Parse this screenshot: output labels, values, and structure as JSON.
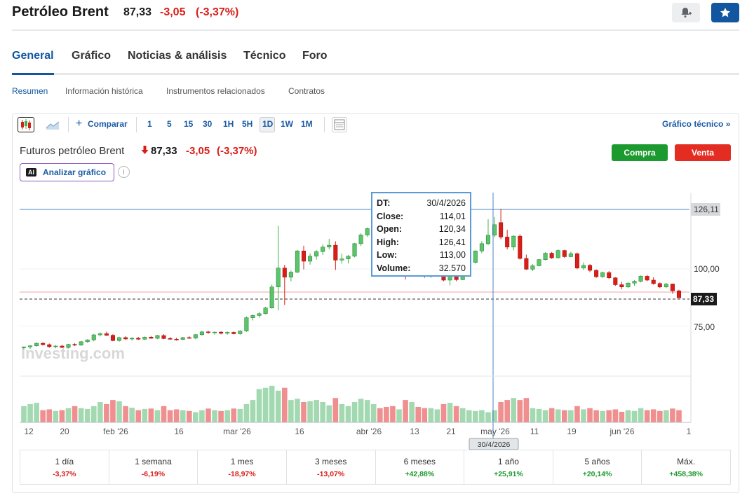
{
  "header": {
    "instrument_name": "Petróleo Brent",
    "price": "87,33",
    "change": "-3,05",
    "change_pct": "(-3,37%)"
  },
  "tabs": [
    {
      "label": "General",
      "active": true
    },
    {
      "label": "Gráfico"
    },
    {
      "label": "Noticias & análisis"
    },
    {
      "label": "Técnico"
    },
    {
      "label": "Foro"
    }
  ],
  "subtabs": [
    {
      "label": "Resumen",
      "active": true
    },
    {
      "label": "Información histórica"
    },
    {
      "label": "Instrumentos relacionados"
    },
    {
      "label": "Contratos"
    }
  ],
  "toolbar": {
    "compare_label": "Comparar",
    "intervals": [
      "1",
      "5",
      "15",
      "30",
      "1H",
      "5H",
      "1D",
      "1W",
      "1M"
    ],
    "selected_interval": "1D",
    "technical_chart_label": "Gráfico técnico »"
  },
  "chart_header": {
    "name": "Futuros petróleo Brent",
    "price": "87,33",
    "change": "-3,05",
    "change_pct": "(-3,37%)",
    "buy_label": "Compra",
    "sell_label": "Venta",
    "analyze_label": "Analizar gráfico",
    "ai_badge": "AI",
    "info_glyph": "i"
  },
  "tooltip": {
    "rows": [
      {
        "k": "DT:",
        "v": "30/4/2026"
      },
      {
        "k": "Close:",
        "v": "114,01"
      },
      {
        "k": "Open:",
        "v": "120,34"
      },
      {
        "k": "High:",
        "v": "126,41"
      },
      {
        "k": "Low:",
        "v": "113,00"
      },
      {
        "k": "Volume:",
        "v": "32.570"
      }
    ]
  },
  "chart_data": {
    "type": "candlestick",
    "y_ticks": [
      "126,11",
      "100,00",
      "75,00"
    ],
    "current_price_label": "87,33",
    "x_ticks": [
      "12",
      "20",
      "feb '26",
      "16",
      "mar '26",
      "16",
      "abr '26",
      "13",
      "21",
      "may '26",
      "11",
      "19",
      "jun '26",
      "1"
    ],
    "crosshair_date": "30/4/2026",
    "watermark": "Investing.com",
    "colors": {
      "up": "#3cb44b",
      "down": "#d91e18",
      "vol_up": "#a3d9b1",
      "vol_down": "#f08f8f",
      "crosshair": "#4a86c8"
    },
    "candles": [
      [
        65.5,
        66,
        64.8,
        65.8,
        0.4
      ],
      [
        65.8,
        66.5,
        65,
        66.3,
        0.45
      ],
      [
        66.3,
        67.8,
        65.9,
        67.4,
        0.48
      ],
      [
        67.4,
        67.9,
        66.4,
        66.8,
        0.3
      ],
      [
        66.8,
        67.3,
        65.5,
        65.9,
        0.32
      ],
      [
        65.9,
        66.6,
        65.2,
        66.2,
        0.28
      ],
      [
        66.2,
        66.7,
        65.3,
        65.6,
        0.3
      ],
      [
        65.6,
        67.2,
        65.2,
        66.9,
        0.35
      ],
      [
        66.9,
        67.4,
        66.2,
        66.6,
        0.4
      ],
      [
        66.6,
        68.5,
        66.3,
        68.1,
        0.35
      ],
      [
        68.1,
        69.2,
        67.6,
        68.9,
        0.33
      ],
      [
        68.9,
        71.5,
        68.3,
        71.1,
        0.4
      ],
      [
        71.1,
        72.2,
        70.4,
        71.6,
        0.5
      ],
      [
        71.6,
        72.5,
        70.6,
        70.9,
        0.45
      ],
      [
        70.9,
        71.4,
        68.3,
        68.6,
        0.55
      ],
      [
        68.6,
        70.3,
        68.1,
        69.9,
        0.52
      ],
      [
        69.9,
        70.5,
        68.9,
        69.3,
        0.4
      ],
      [
        69.3,
        70.1,
        68.6,
        69.6,
        0.36
      ],
      [
        69.6,
        70.2,
        68.9,
        69.2,
        0.3
      ],
      [
        69.2,
        70.4,
        68.8,
        70.1,
        0.33
      ],
      [
        70.1,
        70.6,
        69.4,
        69.6,
        0.34
      ],
      [
        69.6,
        71.1,
        69.2,
        70.8,
        0.3
      ],
      [
        70.8,
        71.4,
        69.2,
        69.5,
        0.4
      ],
      [
        69.5,
        70.2,
        68.9,
        69.2,
        0.3
      ],
      [
        69.2,
        69.8,
        68.6,
        69.1,
        0.32
      ],
      [
        69.1,
        70.2,
        68.8,
        69.9,
        0.3
      ],
      [
        69.9,
        70.5,
        69.4,
        69.7,
        0.28
      ],
      [
        69.7,
        71.5,
        69.2,
        71.2,
        0.25
      ],
      [
        71.2,
        72.8,
        70.8,
        72.4,
        0.3
      ],
      [
        72.4,
        72.9,
        71.6,
        72.1,
        0.34
      ],
      [
        72.1,
        72.6,
        71.2,
        72.3,
        0.3
      ],
      [
        72.3,
        72.7,
        71.3,
        71.8,
        0.28
      ],
      [
        71.8,
        72.6,
        71.2,
        72.2,
        0.3
      ],
      [
        72.2,
        72.6,
        71.3,
        71.6,
        0.34
      ],
      [
        71.6,
        73.1,
        71.2,
        72.8,
        0.33
      ],
      [
        72.8,
        79.2,
        72.4,
        78.6,
        0.45
      ],
      [
        78.6,
        80.1,
        77.4,
        79.6,
        0.55
      ],
      [
        79.6,
        81.1,
        78.6,
        80.4,
        0.82
      ],
      [
        80.4,
        83.4,
        80.1,
        82.9,
        0.85
      ],
      [
        82.9,
        93.2,
        82.6,
        92.1,
        0.9
      ],
      [
        92.1,
        118.9,
        81.8,
        100.4,
        0.78
      ],
      [
        100.4,
        101.8,
        84.2,
        96.4,
        0.85
      ],
      [
        96.4,
        99.3,
        94.6,
        98.6,
        0.55
      ],
      [
        98.6,
        108.4,
        98.1,
        107.9,
        0.58
      ],
      [
        107.9,
        110.2,
        99.8,
        103.4,
        0.5
      ],
      [
        103.4,
        106.8,
        101.9,
        105.6,
        0.52
      ],
      [
        105.6,
        108.3,
        104.1,
        107.6,
        0.55
      ],
      [
        107.6,
        110.8,
        106.1,
        109.6,
        0.5
      ],
      [
        109.6,
        113.2,
        108.6,
        110.4,
        0.42
      ],
      [
        110.4,
        112.1,
        99.6,
        103.9,
        0.6
      ],
      [
        103.9,
        106.7,
        102.3,
        104.4,
        0.45
      ],
      [
        104.4,
        106.1,
        102.4,
        105.6,
        0.4
      ],
      [
        105.6,
        111.4,
        105.1,
        111.1,
        0.5
      ],
      [
        111.1,
        115.6,
        110.1,
        114.9,
        0.58
      ],
      [
        114.9,
        118.2,
        114.1,
        117.7,
        0.55
      ],
      [
        117.7,
        119.3,
        115.8,
        119.1,
        0.45
      ],
      [
        117.5,
        118.3,
        114.9,
        115.3,
        0.35
      ],
      [
        115.3,
        117.6,
        105.1,
        106.7,
        0.38
      ],
      [
        106.7,
        108.4,
        104.3,
        106.2,
        0.4
      ],
      [
        106.2,
        108.6,
        104.9,
        107.9,
        0.32
      ],
      [
        107.9,
        109.8,
        95.4,
        97.8,
        0.55
      ],
      [
        97.8,
        99.9,
        96.9,
        98.9,
        0.5
      ],
      [
        98.9,
        99.6,
        97.3,
        98.4,
        0.38
      ],
      [
        98.4,
        100.1,
        96.1,
        96.8,
        0.35
      ],
      [
        96.8,
        99.2,
        96.1,
        98.6,
        0.35
      ],
      [
        98.6,
        100.6,
        97.9,
        99.8,
        0.32
      ],
      [
        99.8,
        100.4,
        94.6,
        95.1,
        0.45
      ],
      [
        95.1,
        100.2,
        92.8,
        99.6,
        0.48
      ],
      [
        99.6,
        101.2,
        94.6,
        95.3,
        0.4
      ],
      [
        95.3,
        98.2,
        95.1,
        97.6,
        0.35
      ],
      [
        97.6,
        103.4,
        97.2,
        102.9,
        0.3
      ],
      [
        102.9,
        108.2,
        102.4,
        107.9,
        0.28
      ],
      [
        107.9,
        112.2,
        106.9,
        111.1,
        0.3
      ],
      [
        111.1,
        121.8,
        110.4,
        114.8,
        0.25
      ],
      [
        114.8,
        122.8,
        113.9,
        119.4,
        0.3
      ],
      [
        120.34,
        126.41,
        113,
        114.01,
        0.5
      ],
      [
        114.01,
        117.2,
        108.6,
        109.6,
        0.55
      ],
      [
        109.6,
        114.8,
        108.2,
        114.4,
        0.6
      ],
      [
        114.4,
        115.2,
        104.1,
        104.6,
        0.55
      ],
      [
        104.6,
        106.3,
        99.6,
        99.9,
        0.6
      ],
      [
        99.9,
        102.1,
        99.1,
        101.4,
        0.35
      ],
      [
        101.4,
        104.4,
        101.1,
        104.1,
        0.33
      ],
      [
        104.1,
        107.4,
        103.8,
        106.9,
        0.3
      ],
      [
        106.9,
        107.4,
        104.4,
        104.9,
        0.35
      ],
      [
        104.9,
        108.6,
        104.6,
        108.1,
        0.32
      ],
      [
        108.1,
        108.4,
        104.9,
        105.4,
        0.3
      ],
      [
        105.4,
        107.6,
        105.1,
        106.7,
        0.3
      ],
      [
        106.7,
        107.2,
        99.9,
        100.4,
        0.4
      ],
      [
        100.4,
        102.9,
        99.6,
        101.6,
        0.32
      ],
      [
        101.6,
        102.1,
        98.6,
        99.4,
        0.35
      ],
      [
        99.4,
        99.8,
        96.1,
        96.6,
        0.3
      ],
      [
        96.6,
        98.9,
        96.1,
        98.4,
        0.28
      ],
      [
        98.4,
        99.1,
        95.6,
        96.1,
        0.3
      ],
      [
        96.1,
        96.4,
        92.6,
        93.1,
        0.32
      ],
      [
        93.1,
        94.4,
        91.1,
        92.1,
        0.26
      ],
      [
        92.1,
        94.1,
        91.6,
        93.8,
        0.3
      ],
      [
        93.8,
        95.1,
        92.6,
        94.6,
        0.28
      ],
      [
        94.6,
        97.2,
        94.1,
        96.8,
        0.35
      ],
      [
        96.8,
        97.4,
        94.6,
        95.1,
        0.3
      ],
      [
        95.1,
        96.4,
        93.1,
        93.6,
        0.32
      ],
      [
        93.6,
        94.1,
        91.6,
        92.1,
        0.28
      ],
      [
        92.1,
        93.9,
        91.6,
        93.4,
        0.3
      ],
      [
        93.4,
        93.6,
        89.1,
        90.4,
        0.34
      ],
      [
        90.4,
        90.9,
        87.2,
        87.33,
        0.3
      ]
    ]
  },
  "periods": [
    {
      "label": "1 día",
      "value": "-3,37%",
      "dir": "neg"
    },
    {
      "label": "1 semana",
      "value": "-6,19%",
      "dir": "neg"
    },
    {
      "label": "1 mes",
      "value": "-18,97%",
      "dir": "neg"
    },
    {
      "label": "3 meses",
      "value": "-13,07%",
      "dir": "neg"
    },
    {
      "label": "6 meses",
      "value": "+42,88%",
      "dir": "pos"
    },
    {
      "label": "1 año",
      "value": "+25,91%",
      "dir": "pos"
    },
    {
      "label": "5 años",
      "value": "+20,14%",
      "dir": "pos"
    },
    {
      "label": "Máx.",
      "value": "+458,38%",
      "dir": "pos"
    }
  ]
}
